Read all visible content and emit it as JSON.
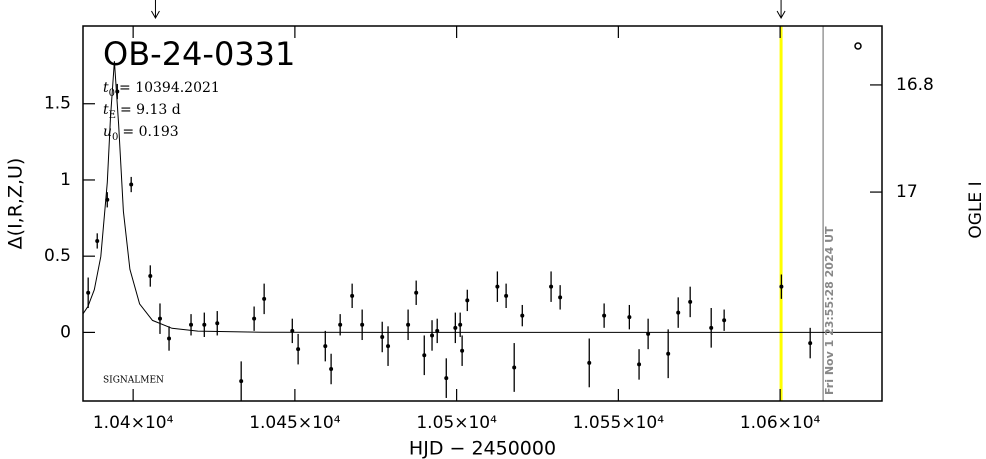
{
  "chart_data": {
    "type": "scatter",
    "title": "OB-24-0331",
    "parameters": [
      {
        "symbol": "t",
        "subscript": "0",
        "text": "= 10394.2021"
      },
      {
        "symbol": "t",
        "subscript": "E",
        "text": "= 9.13 d"
      },
      {
        "symbol": "u",
        "subscript": "0",
        "text": "= 0.193"
      }
    ],
    "x_label": "HJD − 2450000",
    "y_label": "Δ(I,R,Z,U)",
    "y2_label": "OGLE I",
    "source_label": "SIGNALMEN",
    "timestamp": "Fri Nov  1 23:55:28 2024 UT",
    "xlim": [
      10384.5,
      10631.5
    ],
    "xticks": [
      {
        "value": 10400,
        "label": "1.04×10⁴"
      },
      {
        "value": 10450,
        "label": "1.045×10⁴"
      },
      {
        "value": 10500,
        "label": "1.05×10⁴"
      },
      {
        "value": 10550,
        "label": "1.055×10⁴"
      },
      {
        "value": 10600,
        "label": "1.06×10⁴"
      }
    ],
    "ylim": [
      -0.45,
      2.01
    ],
    "yticks": [
      0,
      0.5,
      1,
      1.5
    ],
    "y2lim": [
      17.39,
      16.69
    ],
    "y2ticks": [
      16.8,
      17
    ],
    "series": [
      {
        "color": "#000000",
        "x": [
          10386.1,
          10388.9,
          10392.0,
          10395.1,
          10399.4,
          10405.3,
          10408.3,
          10411.1,
          10417.9,
          10422.0,
          10426.0,
          10433.4,
          10437.4,
          10440.5,
          10449.2,
          10451.0,
          10459.4,
          10461.2,
          10464.0,
          10467.7,
          10470.8,
          10477.0,
          10478.8,
          10485.0,
          10487.5,
          10490.0,
          10492.4,
          10494.0,
          10496.8,
          10499.6,
          10501.1,
          10501.7,
          10503.3,
          10512.6,
          10515.3,
          10517.8,
          10520.3,
          10529.2,
          10532.0,
          10541.0,
          10545.6,
          10553.4,
          10556.4,
          10559.2,
          10565.4,
          10568.5,
          10572.2,
          10578.7,
          10582.7,
          10600.4,
          10609.3
        ],
        "values": [
          0.26,
          0.6,
          0.87,
          1.58,
          0.97,
          0.37,
          0.09,
          -0.04,
          0.05,
          0.05,
          0.06,
          -0.32,
          0.09,
          0.22,
          0.01,
          -0.11,
          -0.09,
          -0.24,
          0.05,
          0.24,
          0.05,
          -0.03,
          -0.09,
          0.05,
          0.26,
          -0.15,
          -0.02,
          0.01,
          -0.3,
          0.03,
          0.05,
          -0.12,
          0.21,
          0.3,
          0.24,
          -0.23,
          0.11,
          0.3,
          0.23,
          -0.2,
          0.11,
          0.1,
          -0.21,
          -0.01,
          -0.14,
          0.13,
          0.2,
          0.03,
          0.08,
          0.3,
          -0.07
        ],
        "errors": [
          0.1,
          0.05,
          0.05,
          0.05,
          0.05,
          0.07,
          0.1,
          0.08,
          0.07,
          0.08,
          0.08,
          0.13,
          0.08,
          0.1,
          0.08,
          0.1,
          0.1,
          0.1,
          0.07,
          0.08,
          0.1,
          0.1,
          0.13,
          0.1,
          0.08,
          0.13,
          0.1,
          0.08,
          0.13,
          0.1,
          0.08,
          0.1,
          0.07,
          0.1,
          0.08,
          0.16,
          0.07,
          0.1,
          0.08,
          0.16,
          0.08,
          0.08,
          0.1,
          0.1,
          0.16,
          0.1,
          0.1,
          0.13,
          0.07,
          0.08,
          0.1
        ]
      }
    ],
    "model": {
      "color": "#000000",
      "x": [
        10384.5,
        10386,
        10388,
        10390,
        10392,
        10393,
        10394.2,
        10395.5,
        10397,
        10399,
        10402,
        10406,
        10412,
        10420,
        10440,
        10631.5
      ],
      "values": [
        0.122,
        0.17,
        0.28,
        0.497,
        0.985,
        1.411,
        1.78,
        1.367,
        0.794,
        0.414,
        0.187,
        0.079,
        0.027,
        0.0086,
        0.001,
        0
      ]
    },
    "markers": [
      {
        "x": 10600.3,
        "color": "#ffff00"
      },
      {
        "x": 10613.3,
        "color": "#999999"
      }
    ],
    "arrows": [
      10406.9,
      10600.3
    ]
  }
}
